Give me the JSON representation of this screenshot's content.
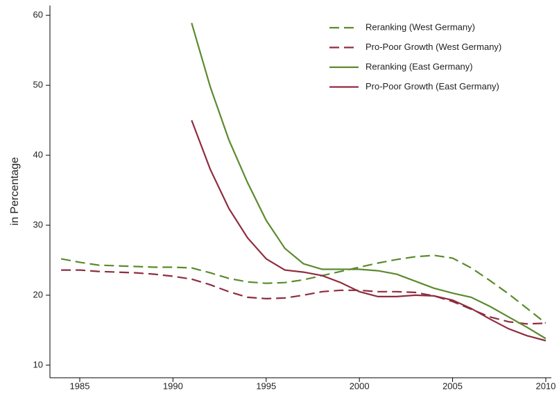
{
  "chart_data": {
    "type": "line",
    "y_label": "in Percentage",
    "x": [
      1984,
      1985,
      1986,
      1987,
      1988,
      1989,
      1990,
      1991,
      1992,
      1993,
      1994,
      1995,
      1996,
      1997,
      1998,
      1999,
      2000,
      2001,
      2002,
      2003,
      2004,
      2005,
      2006,
      2007,
      2008,
      2009,
      2010
    ],
    "series": [
      {
        "name": "Reranking (West Germany)",
        "color": "#5b8a2d",
        "dashed": true,
        "values": [
          25.2,
          24.7,
          24.3,
          24.2,
          24.1,
          24.0,
          24.0,
          23.9,
          23.2,
          22.4,
          21.9,
          21.7,
          21.8,
          22.2,
          22.8,
          23.4,
          24.0,
          24.6,
          25.1,
          25.5,
          25.7,
          25.3,
          23.9,
          22.1,
          20.2,
          18.1,
          16.0
        ]
      },
      {
        "name": "Pro-Poor Growth (West Germany)",
        "color": "#8e2c3e",
        "dashed": true,
        "values": [
          23.6,
          23.6,
          23.4,
          23.3,
          23.2,
          23.0,
          22.7,
          22.3,
          21.5,
          20.5,
          19.7,
          19.5,
          19.6,
          20.0,
          20.5,
          20.7,
          20.7,
          20.5,
          20.5,
          20.4,
          19.9,
          19.1,
          18.0,
          16.9,
          16.2,
          15.9,
          16.0
        ]
      },
      {
        "name": "Reranking (East Germany)",
        "color": "#5b8a2d",
        "dashed": false,
        "values": [
          null,
          null,
          null,
          null,
          null,
          null,
          null,
          58.9,
          49.8,
          42.2,
          36.1,
          30.7,
          26.7,
          24.5,
          23.7,
          23.7,
          23.7,
          23.5,
          23.0,
          22.0,
          21.0,
          20.3,
          19.7,
          18.4,
          16.9,
          15.4,
          13.8
        ]
      },
      {
        "name": "Pro-Poor Growth (East Germany)",
        "color": "#8e2c3e",
        "dashed": false,
        "values": [
          null,
          null,
          null,
          null,
          null,
          null,
          null,
          45.0,
          38.0,
          32.4,
          28.2,
          25.2,
          23.6,
          23.3,
          22.8,
          21.8,
          20.5,
          19.8,
          19.8,
          20.0,
          19.9,
          19.3,
          18.1,
          16.6,
          15.2,
          14.2,
          13.5
        ]
      }
    ],
    "xlim": [
      1983.4,
      2010.3
    ],
    "xticks": [
      1985,
      1990,
      1995,
      2000,
      2005,
      2010
    ],
    "ylim": [
      8.2,
      61.4
    ],
    "yticks": [
      10,
      20,
      30,
      40,
      50,
      60
    ],
    "grid": false,
    "legend": "top-right"
  }
}
